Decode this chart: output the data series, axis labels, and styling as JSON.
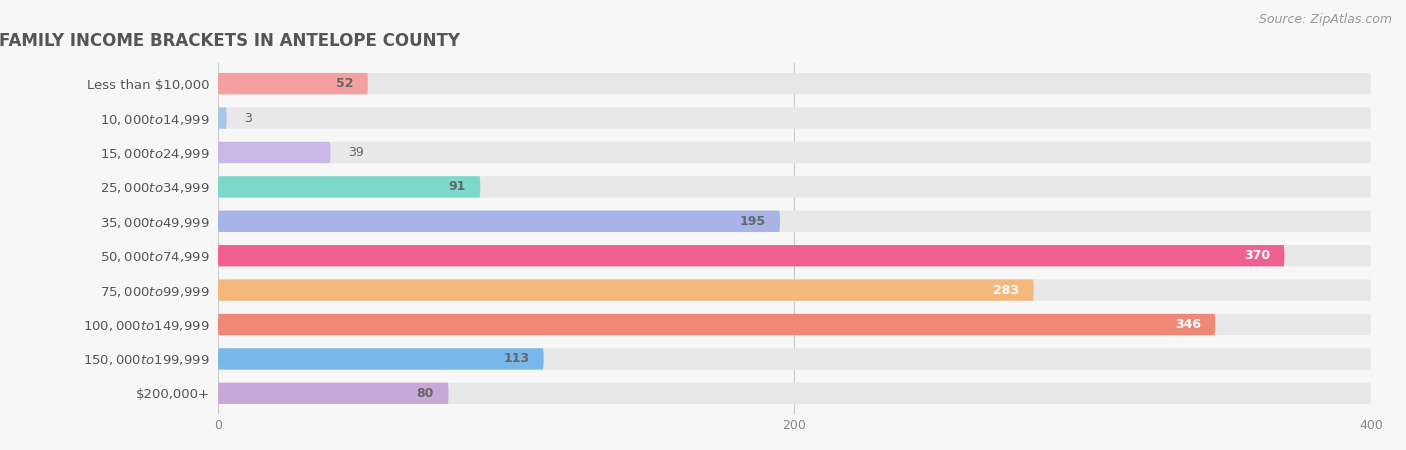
{
  "title": "FAMILY INCOME BRACKETS IN ANTELOPE COUNTY",
  "source": "Source: ZipAtlas.com",
  "categories": [
    "Less than $10,000",
    "$10,000 to $14,999",
    "$15,000 to $24,999",
    "$25,000 to $34,999",
    "$35,000 to $49,999",
    "$50,000 to $74,999",
    "$75,000 to $99,999",
    "$100,000 to $149,999",
    "$150,000 to $199,999",
    "$200,000+"
  ],
  "values": [
    52,
    3,
    39,
    91,
    195,
    370,
    283,
    346,
    113,
    80
  ],
  "bar_colors": [
    "#F4A0A0",
    "#A8C4E8",
    "#C9B8E8",
    "#7DD8CC",
    "#A8B4E8",
    "#F06090",
    "#F4B87C",
    "#F08878",
    "#78B8E8",
    "#C8A8D8"
  ],
  "label_colors": [
    "#666666",
    "#666666",
    "#666666",
    "#666666",
    "#666666",
    "#ffffff",
    "#ffffff",
    "#ffffff",
    "#666666",
    "#666666"
  ],
  "background_color": "#f7f7f7",
  "bar_bg_color": "#e8e8e8",
  "xlim": [
    0,
    400
  ],
  "xticks": [
    0,
    200,
    400
  ],
  "title_fontsize": 12,
  "label_fontsize": 9.5,
  "value_fontsize": 9,
  "source_fontsize": 9
}
